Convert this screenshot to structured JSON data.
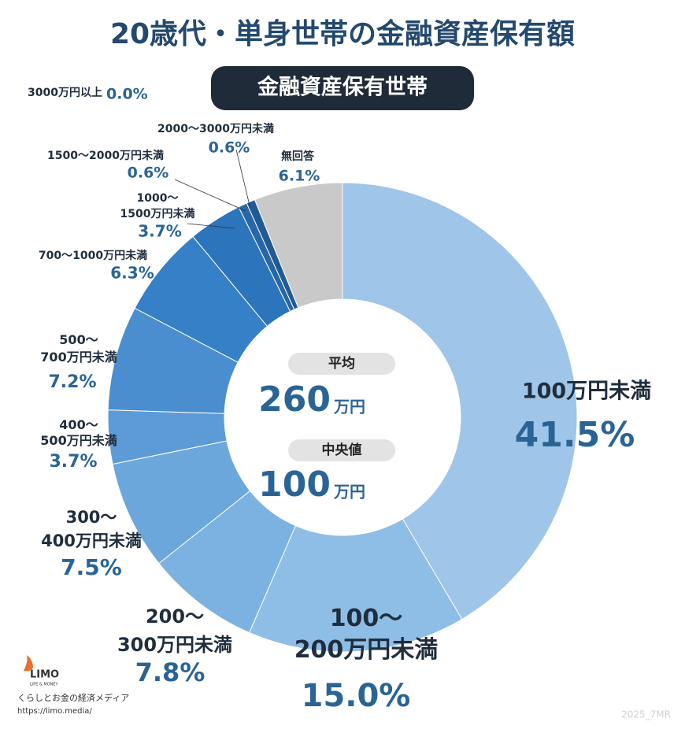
{
  "chart_data": {
    "type": "donut",
    "title": "20歳代・単身世帯の金融資産保有額",
    "subtitle": "金融資産保有世帯",
    "categories": [
      "100万円未満",
      "100～\n200万円未満",
      "200～\n300万円未満",
      "300～\n400万円未満",
      "400～\n500万円未満",
      "500～\n700万円未満",
      "700～1000万円未満",
      "1000～\n1500万円未満",
      "1500～2000万円未満",
      "2000～3000万円未満",
      "3000万円以上",
      "無回答"
    ],
    "values": [
      41.5,
      15.0,
      7.8,
      7.5,
      3.7,
      7.2,
      6.3,
      3.7,
      0.6,
      0.6,
      0.0,
      6.1
    ],
    "value_labels": [
      "41.5%",
      "15.0%",
      "7.8%",
      "7.5%",
      "3.7%",
      "7.2%",
      "6.3%",
      "3.7%",
      "0.6%",
      "0.6%",
      "0.0%",
      "6.1%"
    ],
    "colors": [
      "#9fc5e8",
      "#8ebde6",
      "#7cb2e1",
      "#6ca7dc",
      "#5c9bd6",
      "#4a8ecf",
      "#3580c6",
      "#2c74bb",
      "#2767a8",
      "#215b95",
      "#1b4f82",
      "#c9c9c9"
    ],
    "center": [
      {
        "label": "平均",
        "value": "260",
        "unit": "万円"
      },
      {
        "label": "中央値",
        "value": "100",
        "unit": "万円"
      }
    ],
    "footer": {
      "logo": "LIMO",
      "logo_sub": "LIFE & MONEY",
      "tagline": "くらしとお金の経済メディア",
      "url": "https://limo.media/",
      "code": "2025_7MR"
    }
  }
}
